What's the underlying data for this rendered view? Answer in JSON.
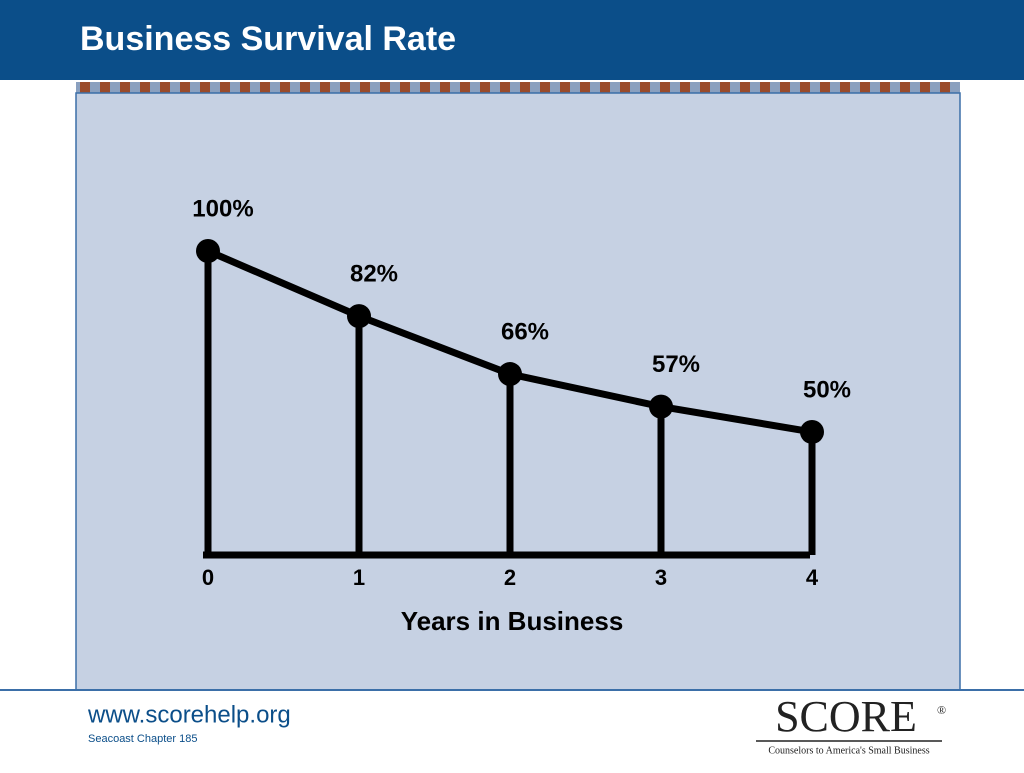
{
  "chart_data": {
    "type": "line",
    "title": "Business Survival Rate",
    "x": [
      0,
      1,
      2,
      3,
      4
    ],
    "values": [
      100,
      82,
      66,
      57,
      50
    ],
    "value_labels": [
      "100%",
      "82%",
      "66%",
      "57%",
      "50%"
    ],
    "color": "#000000",
    "xlim": [
      0,
      4
    ],
    "xticks": [
      0,
      1,
      2,
      3,
      4
    ],
    "ylim": [
      16,
      100
    ],
    "x_label": "Years in Business"
  },
  "footer": {
    "url": "www.scorehelp.org",
    "chapter": "Seacoast Chapter 185",
    "logo": "SCORE",
    "logo_mark": "®",
    "tagline": "Counselors to America's Small Business"
  }
}
